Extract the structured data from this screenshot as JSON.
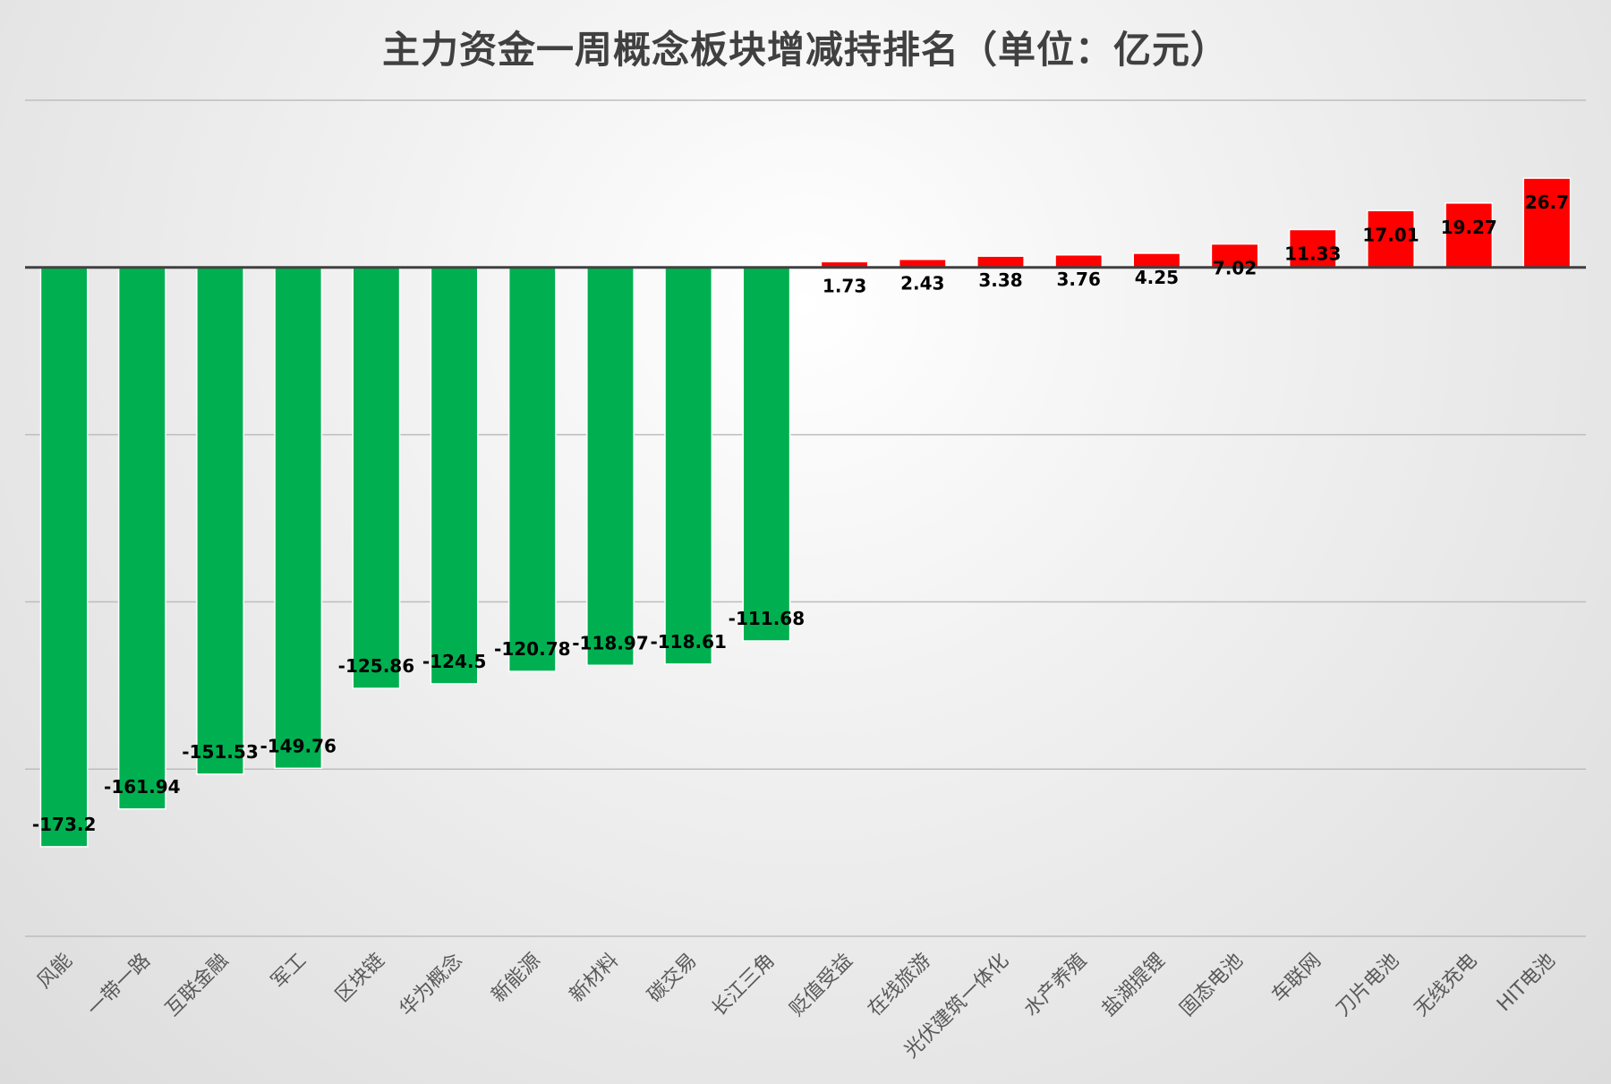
{
  "chart_data": {
    "type": "bar",
    "title": "主力资金一周概念板块增减持排名（单位：亿元）",
    "xlabel": "",
    "ylabel": "",
    "ylim": [
      -200,
      50
    ],
    "grid": true,
    "categories": [
      "风能",
      "一带一路",
      "互联金融",
      "军工",
      "区块链",
      "华为概念",
      "新能源",
      "新材料",
      "碳交易",
      "长江三角",
      "贬值受益",
      "在线旅游",
      "光伏建筑一体化",
      "水产养殖",
      "盐湖提锂",
      "固态电池",
      "车联网",
      "刀片电池",
      "无线充电",
      "HIT电池"
    ],
    "values": [
      -173.2,
      -161.94,
      -151.53,
      -149.76,
      -125.86,
      -124.5,
      -120.78,
      -118.97,
      -118.61,
      -111.68,
      1.73,
      2.43,
      3.38,
      3.76,
      4.25,
      7.02,
      11.33,
      17.01,
      19.27,
      26.7
    ],
    "colors": {
      "negative": "#00b050",
      "positive": "#ff0000"
    }
  }
}
